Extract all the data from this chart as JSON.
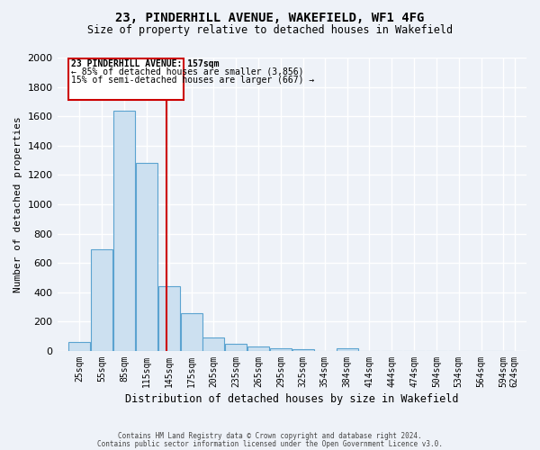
{
  "title": "23, PINDERHILL AVENUE, WAKEFIELD, WF1 4FG",
  "subtitle": "Size of property relative to detached houses in Wakefield",
  "xlabel": "Distribution of detached houses by size in Wakefield",
  "ylabel": "Number of detached properties",
  "bin_labels": [
    "25sqm",
    "55sqm",
    "85sqm",
    "115sqm",
    "145sqm",
    "175sqm",
    "205sqm",
    "235sqm",
    "265sqm",
    "295sqm",
    "325sqm",
    "354sqm",
    "384sqm",
    "414sqm",
    "444sqm",
    "474sqm",
    "504sqm",
    "534sqm",
    "564sqm",
    "594sqm",
    "624sqm"
  ],
  "bin_lefts": [
    25,
    55,
    85,
    115,
    145,
    175,
    205,
    235,
    265,
    295,
    325,
    354,
    384,
    414,
    444,
    474,
    504,
    534,
    564,
    594
  ],
  "bin_width": 30,
  "values": [
    60,
    695,
    1635,
    1285,
    440,
    255,
    90,
    50,
    30,
    20,
    10,
    0,
    15,
    0,
    0,
    0,
    0,
    0,
    0,
    0
  ],
  "bar_color": "#cce0f0",
  "bar_edge_color": "#5ba3d0",
  "property_line_x": 157,
  "property_line_color": "#cc0000",
  "ylim": [
    0,
    2000
  ],
  "yticks": [
    0,
    200,
    400,
    600,
    800,
    1000,
    1200,
    1400,
    1600,
    1800,
    2000
  ],
  "xlim": [
    10,
    640
  ],
  "annotation_text_line1": "23 PINDERHILL AVENUE: 157sqm",
  "annotation_text_line2": "← 85% of detached houses are smaller (3,856)",
  "annotation_text_line3": "15% of semi-detached houses are larger (667) →",
  "annotation_box_color": "#cc0000",
  "background_color": "#eef2f8",
  "grid_color": "#ffffff",
  "footer_line1": "Contains HM Land Registry data © Crown copyright and database right 2024.",
  "footer_line2": "Contains public sector information licensed under the Open Government Licence v3.0."
}
